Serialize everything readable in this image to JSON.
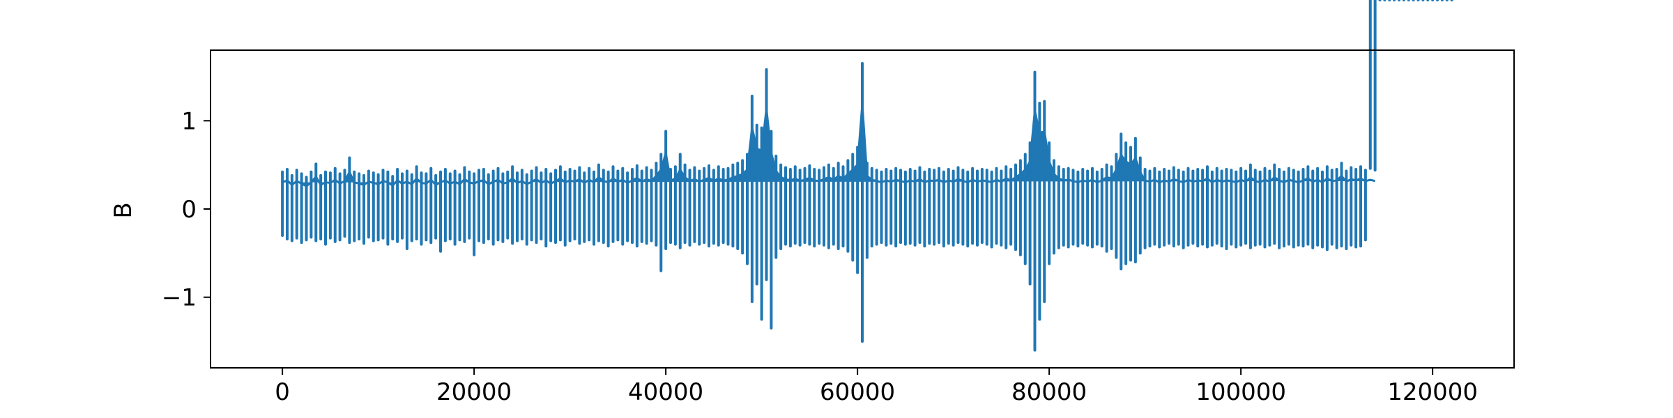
{
  "chart_data": {
    "type": "line",
    "title": "",
    "xlabel": "",
    "ylabel": "B",
    "xlim": [
      -7500,
      128500
    ],
    "ylim": [
      -1.8,
      1.8
    ],
    "xticks": [
      0,
      20000,
      40000,
      60000,
      80000,
      100000,
      120000
    ],
    "xtick_labels": [
      "0",
      "20000",
      "40000",
      "60000",
      "80000",
      "100000",
      "120000"
    ],
    "yticks": [
      -1,
      0,
      1
    ],
    "ytick_labels": [
      "−1",
      "0",
      "1"
    ],
    "grid": false,
    "legend": "none",
    "color": "#1f77b4",
    "series": [
      {
        "x": [
          0,
          500,
          1000,
          1500,
          2000,
          2500,
          3000,
          3500,
          4000,
          4500,
          5000,
          5500,
          6000,
          6500,
          7000,
          7500,
          8000,
          8500,
          9000,
          9500,
          10000,
          10500,
          11000,
          11500,
          12000,
          12500,
          13000,
          13500,
          14000,
          14500,
          15000,
          15500,
          16000,
          16500,
          17000,
          17500,
          18000,
          18500,
          19000,
          19500,
          20000,
          20500,
          21000,
          21500,
          22000,
          22500,
          23000,
          23500,
          24000,
          24500,
          25000,
          25500,
          26000,
          26500,
          27000,
          27500,
          28000,
          28500,
          29000,
          29500,
          30000,
          30500,
          31000,
          31500,
          32000,
          32500,
          33000,
          33500,
          34000,
          34500,
          35000,
          35500,
          36000,
          36500,
          37000,
          37500,
          38000,
          38500,
          39000,
          39500,
          40000,
          40500,
          41000,
          41500,
          42000,
          42500,
          43000,
          43500,
          44000,
          44500,
          45000,
          45500,
          46000,
          46500,
          47000,
          47500,
          48000,
          48500,
          49000,
          49500,
          50000,
          50500,
          51000,
          51500,
          52000,
          52500,
          53000,
          53500,
          54000,
          54500,
          55000,
          55500,
          56000,
          56500,
          57000,
          57500,
          58000,
          58500,
          59000,
          59500,
          60000,
          60500,
          61000,
          61500,
          62000,
          62500,
          63000,
          63500,
          64000,
          64500,
          65000,
          65500,
          66000,
          66500,
          67000,
          67500,
          68000,
          68500,
          69000,
          69500,
          70000,
          70500,
          71000,
          71500,
          72000,
          72500,
          73000,
          73500,
          74000,
          74500,
          75000,
          75500,
          76000,
          76500,
          77000,
          77500,
          78000,
          78500,
          79000,
          79500,
          80000,
          80500,
          81000,
          81500,
          82000,
          82500,
          83000,
          83500,
          84000,
          84500,
          85000,
          85500,
          86000,
          86500,
          87000,
          87500,
          88000,
          88500,
          89000,
          89500,
          90000,
          90500,
          91000,
          91500,
          92000,
          92500,
          93000,
          93500,
          94000,
          94500,
          95000,
          95500,
          96000,
          96500,
          97000,
          97500,
          98000,
          98500,
          99000,
          99500,
          100000,
          100500,
          101000,
          101500,
          102000,
          102500,
          103000,
          103500,
          104000,
          104500,
          105000,
          105500,
          106000,
          106500,
          107000,
          107500,
          108000,
          108500,
          109000,
          109500,
          110000,
          110500,
          111000,
          111500,
          112000,
          112500,
          113000,
          113500,
          114000,
          114500,
          115000,
          115500,
          116000,
          116500,
          117000,
          117500,
          118000,
          118500,
          119000,
          119500,
          120000,
          120500,
          121000,
          121500,
          122000
        ],
        "ymax": [
          0.42,
          0.45,
          0.38,
          0.44,
          0.4,
          0.36,
          0.42,
          0.51,
          0.38,
          0.42,
          0.41,
          0.46,
          0.4,
          0.44,
          0.58,
          0.42,
          0.4,
          0.38,
          0.43,
          0.41,
          0.39,
          0.44,
          0.42,
          0.37,
          0.45,
          0.4,
          0.43,
          0.39,
          0.48,
          0.41,
          0.4,
          0.46,
          0.38,
          0.42,
          0.45,
          0.4,
          0.43,
          0.39,
          0.47,
          0.42,
          0.4,
          0.44,
          0.45,
          0.39,
          0.43,
          0.46,
          0.4,
          0.42,
          0.48,
          0.41,
          0.44,
          0.39,
          0.43,
          0.47,
          0.41,
          0.45,
          0.4,
          0.44,
          0.48,
          0.42,
          0.45,
          0.43,
          0.47,
          0.41,
          0.46,
          0.42,
          0.5,
          0.44,
          0.42,
          0.48,
          0.43,
          0.46,
          0.41,
          0.45,
          0.49,
          0.43,
          0.47,
          0.44,
          0.52,
          0.62,
          0.88,
          0.45,
          0.48,
          0.62,
          0.5,
          0.44,
          0.47,
          0.43,
          0.46,
          0.49,
          0.44,
          0.48,
          0.45,
          0.46,
          0.5,
          0.52,
          0.55,
          0.62,
          1.28,
          0.95,
          0.92,
          1.58,
          0.88,
          0.6,
          0.5,
          0.47,
          0.45,
          0.48,
          0.44,
          0.46,
          0.49,
          0.45,
          0.44,
          0.47,
          0.5,
          0.46,
          0.52,
          0.48,
          0.55,
          0.62,
          0.7,
          1.65,
          0.52,
          0.46,
          0.44,
          0.42,
          0.45,
          0.43,
          0.46,
          0.44,
          0.42,
          0.45,
          0.43,
          0.47,
          0.42,
          0.45,
          0.44,
          0.46,
          0.42,
          0.45,
          0.43,
          0.47,
          0.44,
          0.42,
          0.46,
          0.43,
          0.45,
          0.44,
          0.42,
          0.46,
          0.43,
          0.48,
          0.45,
          0.5,
          0.55,
          0.62,
          0.75,
          1.55,
          1.2,
          1.22,
          0.75,
          0.55,
          0.48,
          0.45,
          0.46,
          0.44,
          0.42,
          0.45,
          0.43,
          0.46,
          0.42,
          0.45,
          0.5,
          0.48,
          0.62,
          0.85,
          0.75,
          0.7,
          0.8,
          0.58,
          0.45,
          0.43,
          0.46,
          0.42,
          0.45,
          0.43,
          0.47,
          0.44,
          0.42,
          0.46,
          0.43,
          0.45,
          0.44,
          0.48,
          0.42,
          0.46,
          0.43,
          0.45,
          0.44,
          0.42,
          0.46,
          0.43,
          0.5,
          0.44,
          0.42,
          0.46,
          0.43,
          0.5,
          0.45,
          0.42,
          0.46,
          0.44,
          0.42,
          0.45,
          0.48,
          0.43,
          0.46,
          0.42,
          0.48,
          0.44,
          0.45,
          0.52,
          0.43,
          0.47,
          0.45,
          0.48,
          0.44,
          0.46,
          0.44
        ],
        "ymin": [
          -0.3,
          -0.34,
          -0.36,
          -0.33,
          -0.38,
          -0.35,
          -0.32,
          -0.36,
          -0.34,
          -0.4,
          -0.33,
          -0.37,
          -0.35,
          -0.31,
          -0.38,
          -0.36,
          -0.34,
          -0.39,
          -0.32,
          -0.36,
          -0.35,
          -0.33,
          -0.4,
          -0.34,
          -0.37,
          -0.33,
          -0.45,
          -0.36,
          -0.34,
          -0.4,
          -0.35,
          -0.38,
          -0.33,
          -0.48,
          -0.36,
          -0.34,
          -0.4,
          -0.35,
          -0.37,
          -0.33,
          -0.52,
          -0.36,
          -0.38,
          -0.34,
          -0.4,
          -0.35,
          -0.37,
          -0.33,
          -0.39,
          -0.36,
          -0.34,
          -0.4,
          -0.35,
          -0.38,
          -0.34,
          -0.42,
          -0.36,
          -0.38,
          -0.35,
          -0.41,
          -0.36,
          -0.34,
          -0.39,
          -0.37,
          -0.35,
          -0.4,
          -0.36,
          -0.38,
          -0.42,
          -0.37,
          -0.35,
          -0.4,
          -0.36,
          -0.38,
          -0.42,
          -0.37,
          -0.39,
          -0.36,
          -0.41,
          -0.7,
          -0.45,
          -0.38,
          -0.4,
          -0.44,
          -0.38,
          -0.41,
          -0.37,
          -0.4,
          -0.38,
          -0.42,
          -0.39,
          -0.41,
          -0.38,
          -0.4,
          -0.42,
          -0.45,
          -0.5,
          -0.62,
          -1.05,
          -0.85,
          -1.25,
          -0.8,
          -1.35,
          -0.55,
          -0.45,
          -0.4,
          -0.42,
          -0.39,
          -0.41,
          -0.38,
          -0.4,
          -0.42,
          -0.39,
          -0.41,
          -0.44,
          -0.4,
          -0.45,
          -0.42,
          -0.48,
          -0.58,
          -0.72,
          -1.5,
          -0.55,
          -0.42,
          -0.4,
          -0.38,
          -0.41,
          -0.39,
          -0.42,
          -0.38,
          -0.4,
          -0.39,
          -0.41,
          -0.38,
          -0.42,
          -0.39,
          -0.4,
          -0.38,
          -0.42,
          -0.39,
          -0.41,
          -0.38,
          -0.4,
          -0.42,
          -0.39,
          -0.41,
          -0.38,
          -0.4,
          -0.43,
          -0.39,
          -0.41,
          -0.44,
          -0.4,
          -0.46,
          -0.52,
          -0.62,
          -0.85,
          -1.6,
          -1.25,
          -1.05,
          -0.62,
          -0.5,
          -0.44,
          -0.41,
          -0.43,
          -0.4,
          -0.42,
          -0.39,
          -0.41,
          -0.43,
          -0.4,
          -0.42,
          -0.48,
          -0.45,
          -0.55,
          -0.68,
          -0.62,
          -0.58,
          -0.6,
          -0.5,
          -0.44,
          -0.42,
          -0.4,
          -0.43,
          -0.41,
          -0.39,
          -0.42,
          -0.4,
          -0.44,
          -0.41,
          -0.39,
          -0.42,
          -0.4,
          -0.43,
          -0.41,
          -0.39,
          -0.42,
          -0.45,
          -0.4,
          -0.43,
          -0.41,
          -0.39,
          -0.44,
          -0.41,
          -0.4,
          -0.43,
          -0.41,
          -0.39,
          -0.44,
          -0.42,
          -0.4,
          -0.43,
          -0.41,
          -0.42,
          -0.4,
          -0.44,
          -0.41,
          -0.43,
          -0.46,
          -0.4,
          -0.44,
          -0.42,
          -0.45,
          -0.41,
          -0.43,
          -0.42,
          -0.35
        ]
      }
    ]
  }
}
